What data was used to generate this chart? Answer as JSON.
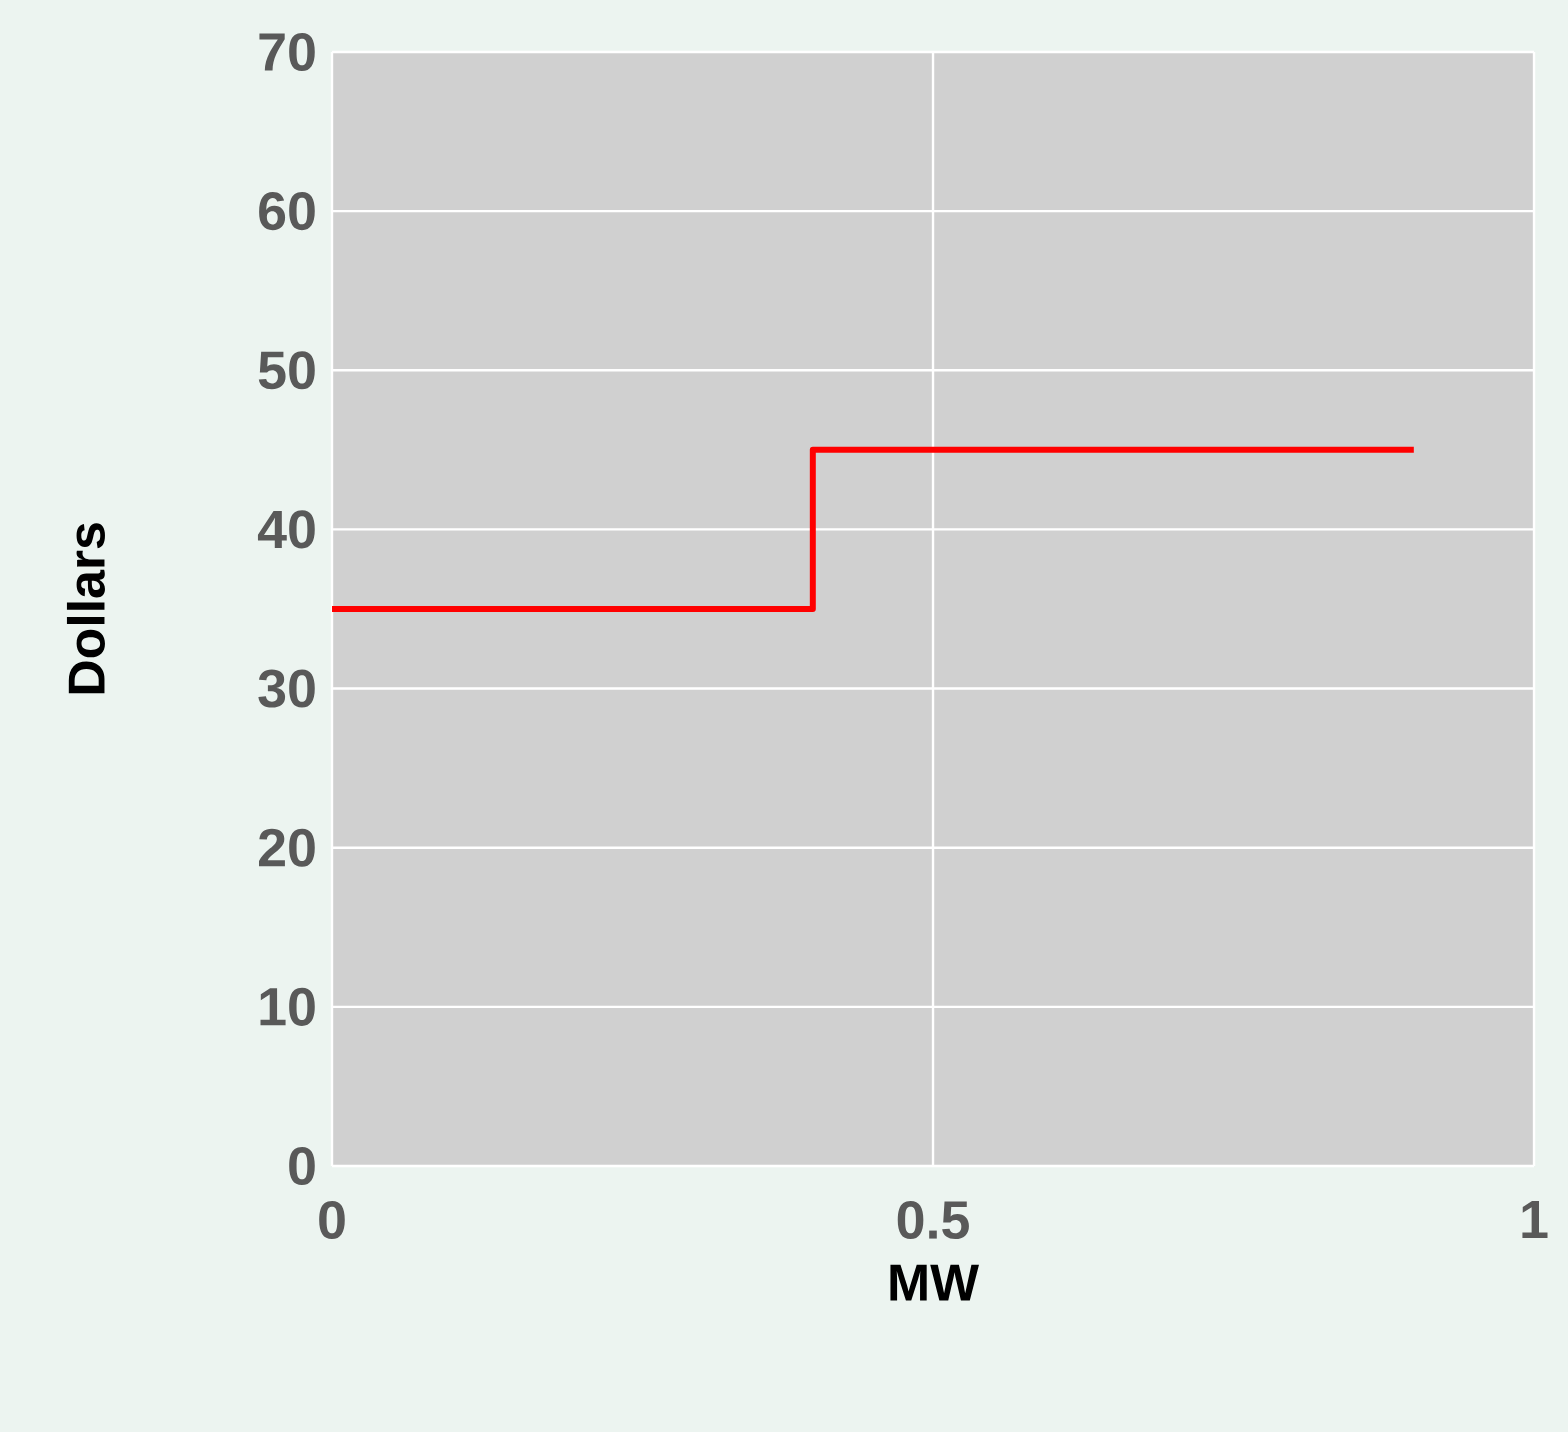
{
  "chart_data": {
    "type": "step",
    "xlabel": "MW",
    "ylabel": "Dollars",
    "x": [
      0,
      0.4,
      0.9
    ],
    "series": [
      {
        "color": "#ff0000",
        "values": [
          35,
          45,
          45
        ]
      }
    ],
    "xlim": [
      0,
      1
    ],
    "ylim": [
      0,
      70
    ],
    "xticks": [
      0,
      0.5,
      1
    ],
    "yticks": [
      0,
      10,
      20,
      30,
      40,
      50,
      60,
      70
    ],
    "grid": true
  }
}
